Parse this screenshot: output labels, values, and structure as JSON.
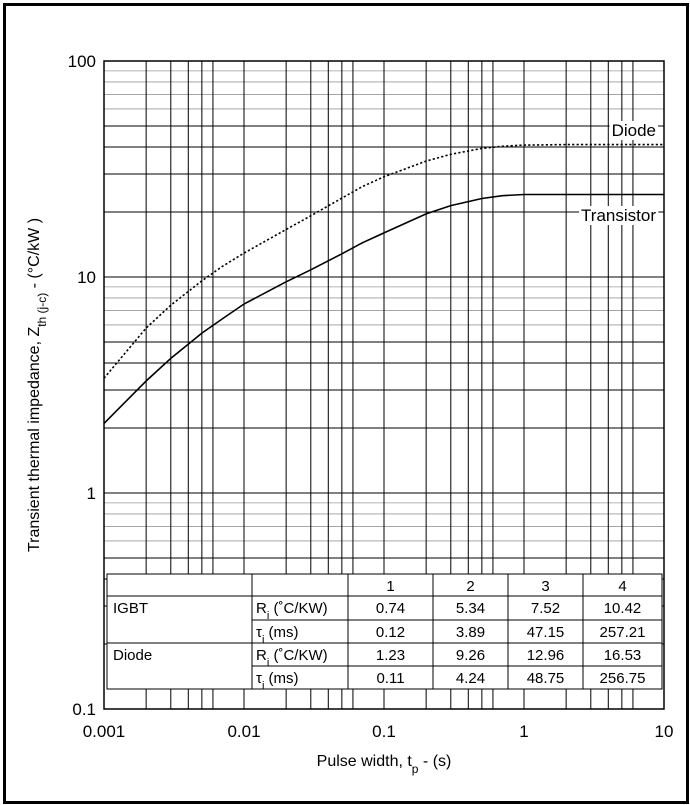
{
  "chart_data": {
    "type": "line",
    "title": "",
    "xlabel": "Pulse width, t",
    "xlabel_sub": "p",
    "xlabel_suffix": " - (s)",
    "ylabel": "Transient thermal impedance, Z",
    "ylabel_sub": "th (j-c)",
    "ylabel_suffix": " - (°C/kW )",
    "xscale": "log",
    "yscale": "log",
    "xlim": [
      0.001,
      10
    ],
    "ylim": [
      0.1,
      100
    ],
    "grid": true,
    "x_tick_labels": [
      "0.001",
      "0.01",
      "0.1",
      "1",
      "10"
    ],
    "y_tick_labels": [
      "0.1",
      "1",
      "10",
      "100"
    ],
    "series": [
      {
        "name": "Diode",
        "style": "dotted",
        "x": [
          0.001,
          0.002,
          0.003,
          0.005,
          0.007,
          0.01,
          0.02,
          0.03,
          0.05,
          0.07,
          0.1,
          0.2,
          0.3,
          0.5,
          0.7,
          1,
          2,
          3,
          5,
          10
        ],
        "y": [
          3.4,
          5.8,
          7.4,
          9.6,
          11.2,
          12.9,
          16.6,
          19.2,
          23.2,
          26.2,
          29.1,
          34.4,
          37.0,
          39.4,
          40.3,
          40.8,
          41.0,
          41.0,
          41.0,
          41.0
        ]
      },
      {
        "name": "Transistor",
        "style": "solid",
        "x": [
          0.001,
          0.002,
          0.003,
          0.005,
          0.007,
          0.01,
          0.02,
          0.03,
          0.05,
          0.07,
          0.1,
          0.2,
          0.3,
          0.5,
          0.7,
          1,
          2,
          3,
          5,
          10
        ],
        "y": [
          2.1,
          3.3,
          4.2,
          5.5,
          6.4,
          7.5,
          9.5,
          10.8,
          12.8,
          14.4,
          16.0,
          19.6,
          21.4,
          23.1,
          23.8,
          24.1,
          24.1,
          24.1,
          24.1,
          24.1
        ]
      }
    ],
    "table": {
      "header": [
        "",
        "",
        "1",
        "2",
        "3",
        "4"
      ],
      "rows": [
        {
          "device": "IGBT",
          "param": "R",
          "param_sub": "i",
          "param_suffix": " (˚C/KW)",
          "values": [
            "0.74",
            "5.34",
            "7.52",
            "10.42"
          ]
        },
        {
          "device": "",
          "param": "τ",
          "param_sub": "i",
          "param_suffix": " (ms)",
          "values": [
            "0.12",
            "3.89",
            "47.15",
            "257.21"
          ]
        },
        {
          "device": "Diode",
          "param": "R",
          "param_sub": "i",
          "param_suffix": " (˚C/KW)",
          "values": [
            "1.23",
            "9.26",
            "12.96",
            "16.53"
          ]
        },
        {
          "device": "",
          "param": "τ",
          "param_sub": "i",
          "param_suffix": " (ms)",
          "values": [
            "0.11",
            "4.24",
            "48.75",
            "256.75"
          ]
        }
      ]
    }
  }
}
